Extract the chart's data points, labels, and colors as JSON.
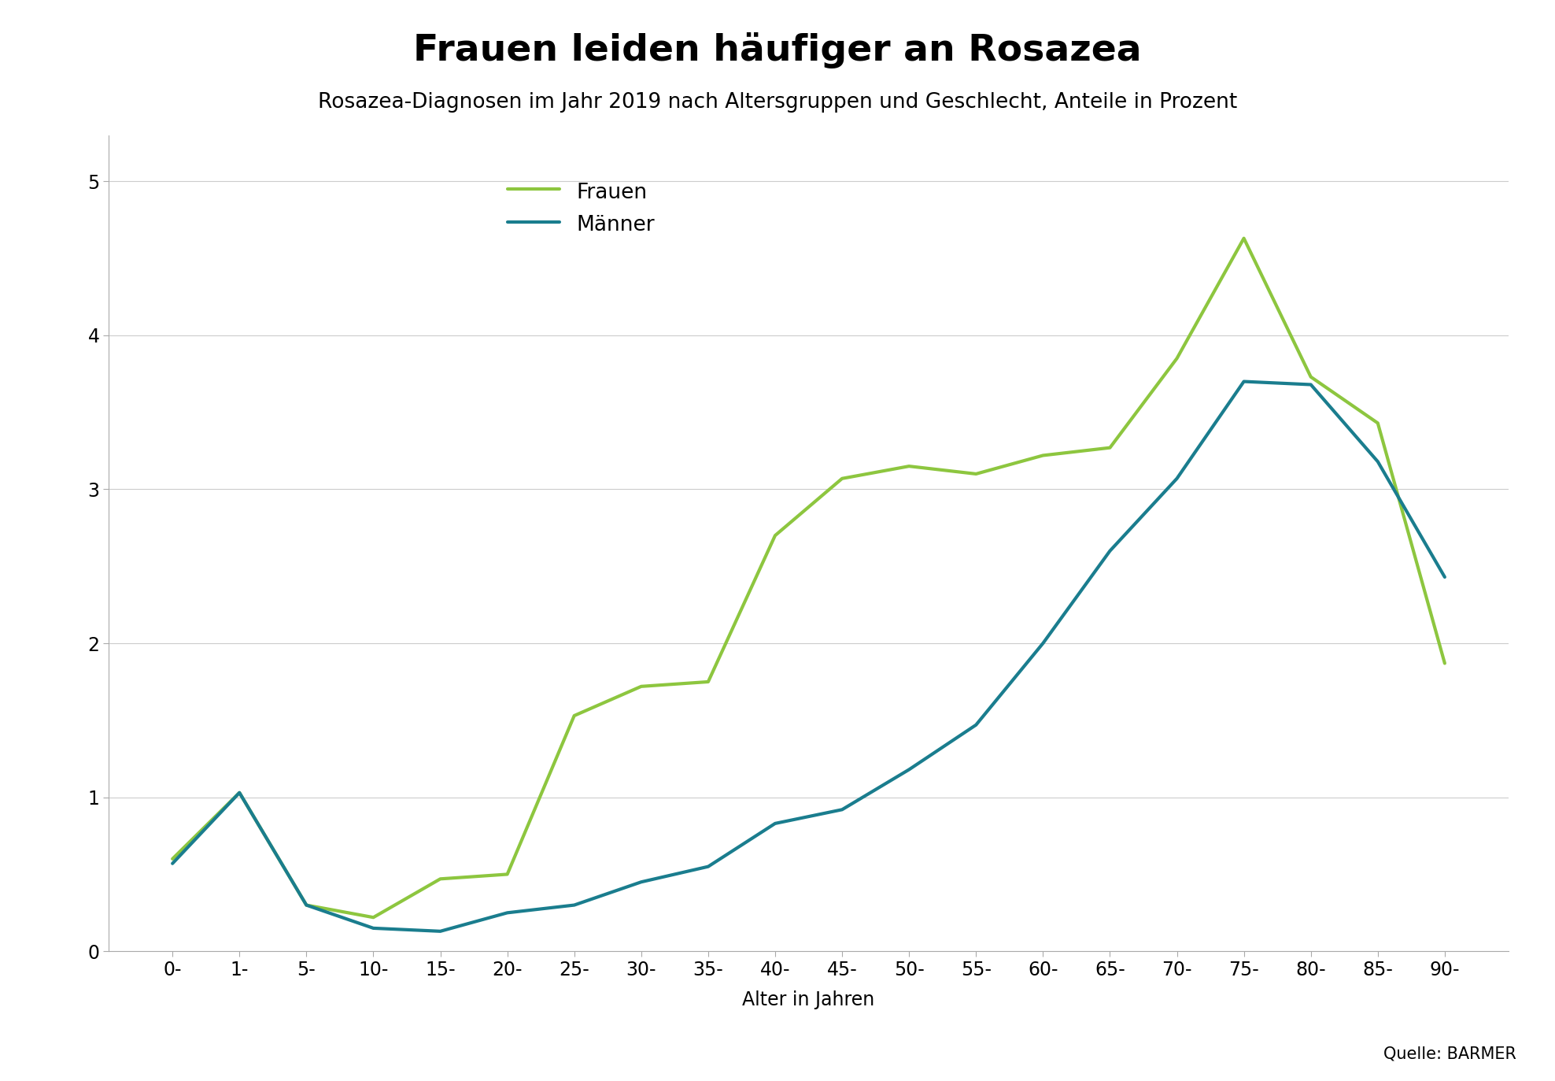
{
  "title": "Frauen leiden häufiger an Rosazea",
  "subtitle": "Rosazea-Diagnosen im Jahr 2019 nach Altersgruppen und Geschlecht, Anteile in Prozent",
  "xlabel": "Alter in Jahren",
  "source": "Quelle: BARMER",
  "categories": [
    "0-",
    "1-",
    "5-",
    "10-",
    "15-",
    "20-",
    "25-",
    "30-",
    "35-",
    "40-",
    "45-",
    "50-",
    "55-",
    "60-",
    "65-",
    "70-",
    "75-",
    "80-",
    "85-",
    "90-"
  ],
  "frauen": [
    0.6,
    1.03,
    0.3,
    0.22,
    0.47,
    0.5,
    1.53,
    1.72,
    1.75,
    2.7,
    3.07,
    3.15,
    3.1,
    3.22,
    3.27,
    3.85,
    4.63,
    3.73,
    3.43,
    1.87
  ],
  "maenner": [
    0.57,
    1.03,
    0.3,
    0.15,
    0.13,
    0.25,
    0.3,
    0.45,
    0.55,
    0.83,
    0.92,
    1.18,
    1.47,
    2.0,
    2.6,
    3.07,
    3.7,
    3.68,
    3.18,
    2.43
  ],
  "frauen_color": "#8dc63f",
  "maenner_color": "#1a7d8e",
  "ylim": [
    0,
    5.3
  ],
  "yticks": [
    0,
    1,
    2,
    3,
    4,
    5
  ],
  "line_width": 3.0,
  "background_color": "#ffffff",
  "title_fontsize": 34,
  "subtitle_fontsize": 19,
  "legend_fontsize": 19,
  "tick_fontsize": 17,
  "xlabel_fontsize": 17,
  "source_fontsize": 15
}
